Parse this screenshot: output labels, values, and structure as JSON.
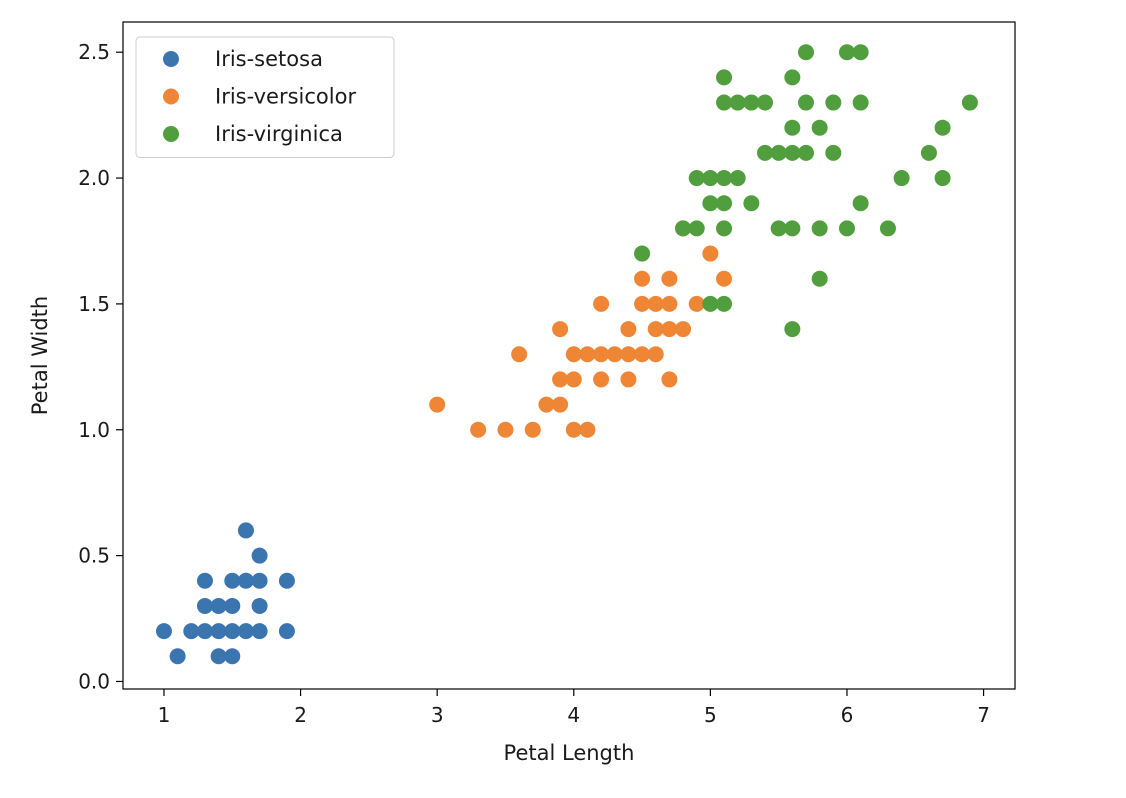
{
  "chart_data": {
    "type": "scatter",
    "title": "",
    "xlabel": "Petal Length",
    "ylabel": "Petal Width",
    "xlim": [
      0.7,
      7.23
    ],
    "ylim": [
      -0.03,
      2.62
    ],
    "xticks": [
      1,
      2,
      3,
      4,
      5,
      6,
      7
    ],
    "xtick_labels": [
      "1",
      "2",
      "3",
      "4",
      "5",
      "6",
      "7"
    ],
    "yticks": [
      0.0,
      0.5,
      1.0,
      1.5,
      2.0,
      2.5
    ],
    "ytick_labels": [
      "0.0",
      "0.5",
      "1.0",
      "1.5",
      "2.0",
      "2.5"
    ],
    "grid": false,
    "legend_position": "top-left",
    "series": [
      {
        "name": "Iris-setosa",
        "color": "#3b75af",
        "points": [
          [
            1.0,
            0.2
          ],
          [
            1.1,
            0.1
          ],
          [
            1.2,
            0.2
          ],
          [
            1.3,
            0.2
          ],
          [
            1.3,
            0.3
          ],
          [
            1.3,
            0.4
          ],
          [
            1.4,
            0.1
          ],
          [
            1.4,
            0.2
          ],
          [
            1.4,
            0.3
          ],
          [
            1.5,
            0.1
          ],
          [
            1.5,
            0.2
          ],
          [
            1.5,
            0.3
          ],
          [
            1.5,
            0.4
          ],
          [
            1.6,
            0.2
          ],
          [
            1.6,
            0.4
          ],
          [
            1.6,
            0.6
          ],
          [
            1.7,
            0.2
          ],
          [
            1.7,
            0.3
          ],
          [
            1.7,
            0.4
          ],
          [
            1.7,
            0.5
          ],
          [
            1.9,
            0.2
          ],
          [
            1.9,
            0.4
          ]
        ]
      },
      {
        "name": "Iris-versicolor",
        "color": "#ef8636",
        "points": [
          [
            3.0,
            1.1
          ],
          [
            3.3,
            1.0
          ],
          [
            3.5,
            1.0
          ],
          [
            3.6,
            1.3
          ],
          [
            3.7,
            1.0
          ],
          [
            3.8,
            1.1
          ],
          [
            3.9,
            1.1
          ],
          [
            3.9,
            1.2
          ],
          [
            3.9,
            1.4
          ],
          [
            4.0,
            1.0
          ],
          [
            4.0,
            1.2
          ],
          [
            4.0,
            1.3
          ],
          [
            4.1,
            1.0
          ],
          [
            4.1,
            1.3
          ],
          [
            4.2,
            1.2
          ],
          [
            4.2,
            1.3
          ],
          [
            4.2,
            1.5
          ],
          [
            4.3,
            1.3
          ],
          [
            4.4,
            1.2
          ],
          [
            4.4,
            1.3
          ],
          [
            4.4,
            1.4
          ],
          [
            4.5,
            1.3
          ],
          [
            4.5,
            1.5
          ],
          [
            4.5,
            1.6
          ],
          [
            4.6,
            1.3
          ],
          [
            4.6,
            1.4
          ],
          [
            4.6,
            1.5
          ],
          [
            4.7,
            1.2
          ],
          [
            4.7,
            1.4
          ],
          [
            4.7,
            1.5
          ],
          [
            4.7,
            1.6
          ],
          [
            4.8,
            1.4
          ],
          [
            4.8,
            1.8
          ],
          [
            4.9,
            1.5
          ],
          [
            5.0,
            1.7
          ],
          [
            5.1,
            1.6
          ]
        ]
      },
      {
        "name": "Iris-virginica",
        "color": "#519e3e",
        "points": [
          [
            4.5,
            1.7
          ],
          [
            4.8,
            1.8
          ],
          [
            4.9,
            1.8
          ],
          [
            4.9,
            2.0
          ],
          [
            5.0,
            1.5
          ],
          [
            5.0,
            1.9
          ],
          [
            5.0,
            2.0
          ],
          [
            5.1,
            1.5
          ],
          [
            5.1,
            1.8
          ],
          [
            5.1,
            1.9
          ],
          [
            5.1,
            2.0
          ],
          [
            5.1,
            2.3
          ],
          [
            5.1,
            2.4
          ],
          [
            5.2,
            2.0
          ],
          [
            5.2,
            2.3
          ],
          [
            5.3,
            1.9
          ],
          [
            5.3,
            2.3
          ],
          [
            5.4,
            2.1
          ],
          [
            5.4,
            2.3
          ],
          [
            5.5,
            1.8
          ],
          [
            5.5,
            2.1
          ],
          [
            5.6,
            1.4
          ],
          [
            5.6,
            1.8
          ],
          [
            5.6,
            2.1
          ],
          [
            5.6,
            2.2
          ],
          [
            5.6,
            2.4
          ],
          [
            5.7,
            2.1
          ],
          [
            5.7,
            2.3
          ],
          [
            5.7,
            2.5
          ],
          [
            5.8,
            1.6
          ],
          [
            5.8,
            1.8
          ],
          [
            5.8,
            2.2
          ],
          [
            5.9,
            2.1
          ],
          [
            5.9,
            2.3
          ],
          [
            6.0,
            1.8
          ],
          [
            6.0,
            2.5
          ],
          [
            6.1,
            1.9
          ],
          [
            6.1,
            2.3
          ],
          [
            6.1,
            2.5
          ],
          [
            6.3,
            1.8
          ],
          [
            6.4,
            2.0
          ],
          [
            6.6,
            2.1
          ],
          [
            6.7,
            2.0
          ],
          [
            6.7,
            2.2
          ],
          [
            6.9,
            2.3
          ]
        ]
      }
    ]
  }
}
